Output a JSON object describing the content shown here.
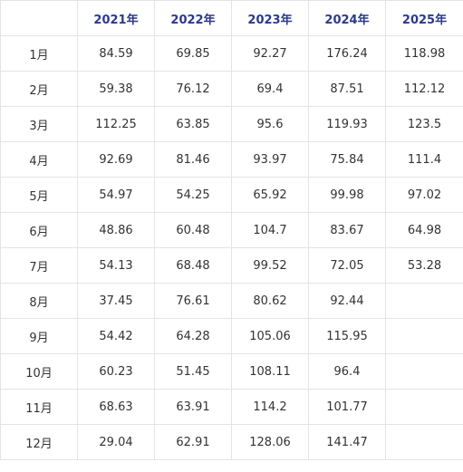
{
  "chart_data": {
    "type": "table",
    "corner": "",
    "columns": [
      "2021年",
      "2022年",
      "2023年",
      "2024年",
      "2025年"
    ],
    "rows": [
      {
        "month": "1月",
        "values": [
          "84.59",
          "69.85",
          "92.27",
          "176.24",
          "118.98"
        ]
      },
      {
        "month": "2月",
        "values": [
          "59.38",
          "76.12",
          "69.4",
          "87.51",
          "112.12"
        ]
      },
      {
        "month": "3月",
        "values": [
          "112.25",
          "63.85",
          "95.6",
          "119.93",
          "123.5"
        ]
      },
      {
        "month": "4月",
        "values": [
          "92.69",
          "81.46",
          "93.97",
          "75.84",
          "111.4"
        ]
      },
      {
        "month": "5月",
        "values": [
          "54.97",
          "54.25",
          "65.92",
          "99.98",
          "97.02"
        ]
      },
      {
        "month": "6月",
        "values": [
          "48.86",
          "60.48",
          "104.7",
          "83.67",
          "64.98"
        ]
      },
      {
        "month": "7月",
        "values": [
          "54.13",
          "68.48",
          "99.52",
          "72.05",
          "53.28"
        ]
      },
      {
        "month": "8月",
        "values": [
          "37.45",
          "76.61",
          "80.62",
          "92.44",
          ""
        ]
      },
      {
        "month": "9月",
        "values": [
          "54.42",
          "64.28",
          "105.06",
          "115.95",
          ""
        ]
      },
      {
        "month": "10月",
        "values": [
          "60.23",
          "51.45",
          "108.11",
          "96.4",
          ""
        ]
      },
      {
        "month": "11月",
        "values": [
          "68.63",
          "63.91",
          "114.2",
          "101.77",
          ""
        ]
      },
      {
        "month": "12月",
        "values": [
          "29.04",
          "62.91",
          "128.06",
          "141.47",
          ""
        ]
      }
    ],
    "colors": {
      "header_text": "#2b3a8c",
      "body_text": "#333333",
      "border": "#e4e4e4"
    }
  }
}
